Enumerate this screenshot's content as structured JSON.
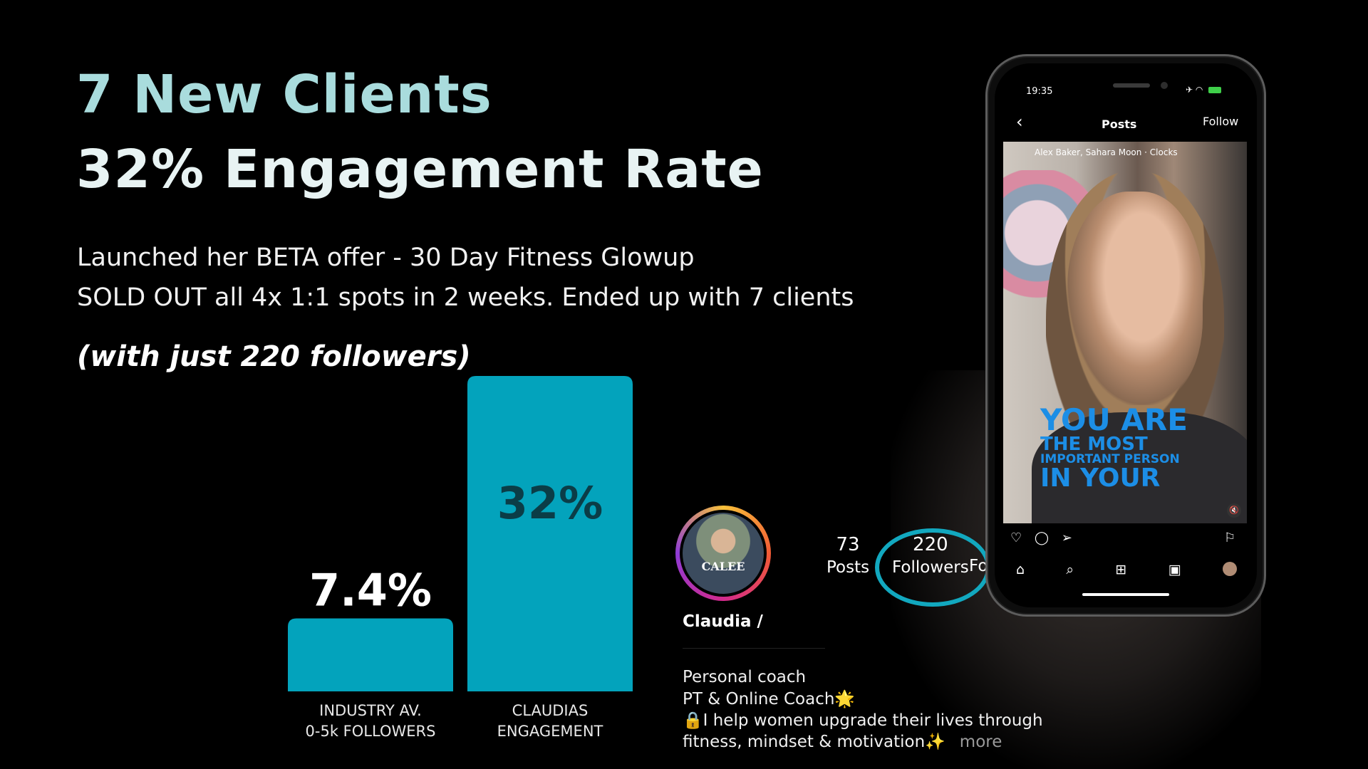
{
  "headline": {
    "line1": "7 New Clients",
    "line2": "32% Engagement Rate"
  },
  "description": {
    "line1": "Launched her BETA offer - 30 Day Fitness Glowup",
    "line2": "SOLD OUT all 4x 1:1 spots in 2 weeks. Ended up with 7 clients",
    "emphasis": "(with just 220 followers)"
  },
  "chart_data": {
    "type": "bar",
    "categories": [
      "INDUSTRY AV.\n0-5k FOLLOWERS",
      "CLAUDIAS\nENGAGEMENT"
    ],
    "category_lines": [
      [
        "INDUSTRY AV.",
        "0-5k FOLLOWERS"
      ],
      [
        "CLAUDIAS",
        "ENGAGEMENT"
      ]
    ],
    "values": [
      7.4,
      32
    ],
    "value_labels": [
      "7.4%",
      "32%"
    ],
    "title": "",
    "xlabel": "",
    "ylabel": "",
    "ylim": [
      0,
      32
    ],
    "grid": false,
    "colors": {
      "bar": "#03a3bc",
      "label_inside": "#0b3d47",
      "label_outside": "#ffffff",
      "category_text": "#e8e8e8"
    }
  },
  "profile": {
    "avatar_text": "CALEE",
    "name": "Claudia /",
    "posts_count": "73",
    "posts_label": "Posts",
    "followers_count": "220",
    "followers_label": "Followers",
    "following_label_fragment": "Fo",
    "bio_line1": "Personal coach",
    "bio_line2": "PT & Online Coach🌟",
    "bio_line3": "🔒I help women upgrade their lives through",
    "bio_line4": "fitness, mindset & motivation✨",
    "bio_more": "more",
    "highlight_color": "#12a8bf"
  },
  "phone": {
    "time": "19:35",
    "nav_title": "Posts",
    "follow_label": "Follow",
    "post_caption": "Alex Baker, Sahara Moon · Clocks",
    "overlay_line1": "YOU ARE",
    "overlay_line2": "THE MOST",
    "overlay_line3": "IMPORTANT PERSON",
    "overlay_line4": "IN YOUR"
  }
}
